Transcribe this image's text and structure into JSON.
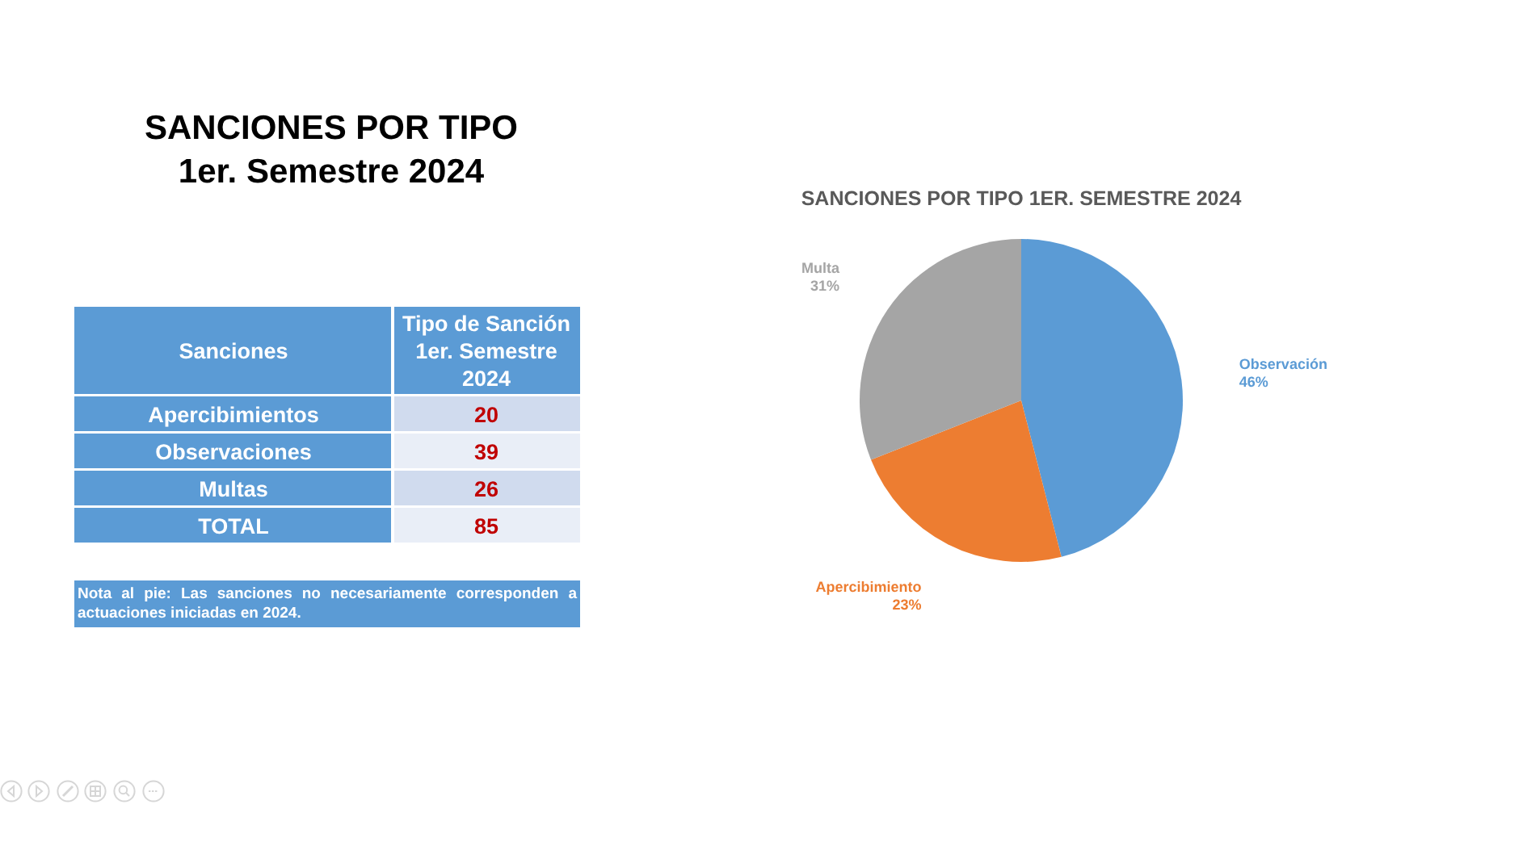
{
  "chart_data": [
    {
      "type": "other",
      "title": "SANCIONES POR TIPO",
      "subtitle": "1er. Semestre 2024",
      "xlabel": "Sanciones",
      "ylabel": "Tipo de Sanción 1er. Semestre 2024",
      "categories": [
        "Apercibimientos",
        "Observaciones",
        "Multas",
        "TOTAL"
      ],
      "values": [
        20,
        39,
        26,
        85
      ],
      "data_labels": true,
      "annotations": [
        "Nota al pie: Las sanciones no necesariamente corresponden a actuaciones iniciadas en 2024."
      ]
    },
    {
      "type": "pie",
      "title": "SANCIONES POR TIPO 1ER. SEMESTRE 2024",
      "categories": [
        "Observación",
        "Apercibimiento",
        "Multa"
      ],
      "values": [
        46,
        23,
        31
      ],
      "value_labels": [
        "46%",
        "23%",
        "31%"
      ],
      "colors": [
        "#5b9bd5",
        "#ed7d31",
        "#a5a5a5"
      ]
    }
  ]
}
